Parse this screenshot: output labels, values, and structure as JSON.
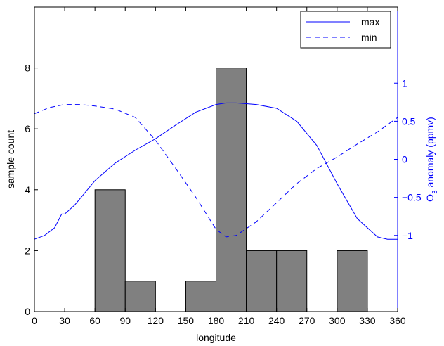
{
  "chart_data": {
    "type": "bar+line",
    "xlabel": "longitude",
    "ylabel_left": "sample count",
    "ylabel_right_prefix": "O",
    "ylabel_right_sub": "3",
    "ylabel_right_suffix": " anomaly (ppmv)",
    "xlim": [
      0,
      360
    ],
    "ylim_left": [
      0,
      10
    ],
    "ylim_right": [
      -2,
      2
    ],
    "xticks": [
      0,
      30,
      60,
      90,
      120,
      150,
      180,
      210,
      240,
      270,
      300,
      330,
      360
    ],
    "yticks_left": [
      0,
      2,
      4,
      6,
      8
    ],
    "yticks_right": [
      -1,
      -0.5,
      0,
      0.5,
      1
    ],
    "yticks_right_labels": [
      "−1",
      "−0.5",
      "0",
      "0.5",
      "1"
    ],
    "histogram": {
      "bin_width": 30,
      "bins": [
        {
          "start": 60,
          "count": 4
        },
        {
          "start": 90,
          "count": 1
        },
        {
          "start": 150,
          "count": 1
        },
        {
          "start": 180,
          "count": 8
        },
        {
          "start": 210,
          "count": 2
        },
        {
          "start": 240,
          "count": 2
        },
        {
          "start": 300,
          "count": 2
        }
      ],
      "color": "#808080"
    },
    "series": [
      {
        "name": "max",
        "style": "solid",
        "color": "#0000ff",
        "x": [
          0,
          10,
          20,
          27,
          30,
          40,
          60,
          80,
          100,
          120,
          140,
          160,
          180,
          190,
          200,
          210,
          220,
          240,
          260,
          280,
          300,
          320,
          340,
          350,
          360
        ],
        "y": [
          -1.05,
          -1.0,
          -0.9,
          -0.72,
          -0.72,
          -0.6,
          -0.28,
          -0.05,
          0.12,
          0.27,
          0.45,
          0.62,
          0.72,
          0.74,
          0.74,
          0.73,
          0.72,
          0.67,
          0.5,
          0.18,
          -0.32,
          -0.78,
          -1.02,
          -1.05,
          -1.05
        ]
      },
      {
        "name": "min",
        "style": "dashed",
        "color": "#0000ff",
        "x": [
          0,
          15,
          30,
          45,
          60,
          80,
          100,
          120,
          140,
          160,
          180,
          190,
          200,
          220,
          240,
          260,
          280,
          300,
          320,
          340,
          360
        ],
        "y": [
          0.6,
          0.68,
          0.72,
          0.72,
          0.7,
          0.66,
          0.55,
          0.25,
          -0.12,
          -0.5,
          -0.92,
          -1.02,
          -1.0,
          -0.82,
          -0.57,
          -0.32,
          -0.12,
          0.03,
          0.2,
          0.36,
          0.55
        ]
      }
    ],
    "legend_position": "top-right",
    "grid": false,
    "axis_color_right": "#0000ff"
  }
}
